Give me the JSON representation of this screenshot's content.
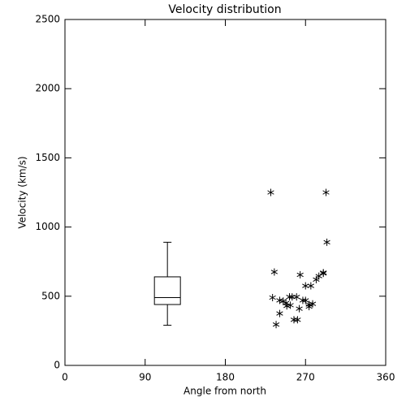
{
  "chart_data": {
    "type": "scatter",
    "title": "Velocity distribution",
    "x_label": "Angle from north",
    "y_label": "Velocity (km/s)",
    "xlim": [
      0,
      360
    ],
    "xticks": [
      0,
      90,
      180,
      270,
      360
    ],
    "ylim": [
      0,
      2500
    ],
    "yticks": [
      0,
      500,
      1000,
      1500,
      2000,
      2500
    ],
    "color": "#000000",
    "box": {
      "x": 115,
      "min": 290,
      "q1": 440,
      "median": 490,
      "q3": 640,
      "max": 890
    },
    "x": [
      231,
      293,
      294,
      235,
      264,
      290,
      285,
      282,
      276,
      270,
      233,
      241,
      245,
      248,
      252,
      255,
      260,
      249,
      253,
      267,
      270,
      263,
      241,
      237,
      257,
      261,
      274,
      278,
      274,
      290
    ],
    "y": [
      1250,
      1250,
      890,
      675,
      655,
      670,
      645,
      620,
      575,
      575,
      490,
      470,
      465,
      450,
      495,
      495,
      495,
      430,
      435,
      470,
      470,
      410,
      375,
      295,
      330,
      330,
      440,
      445,
      425,
      665
    ]
  }
}
